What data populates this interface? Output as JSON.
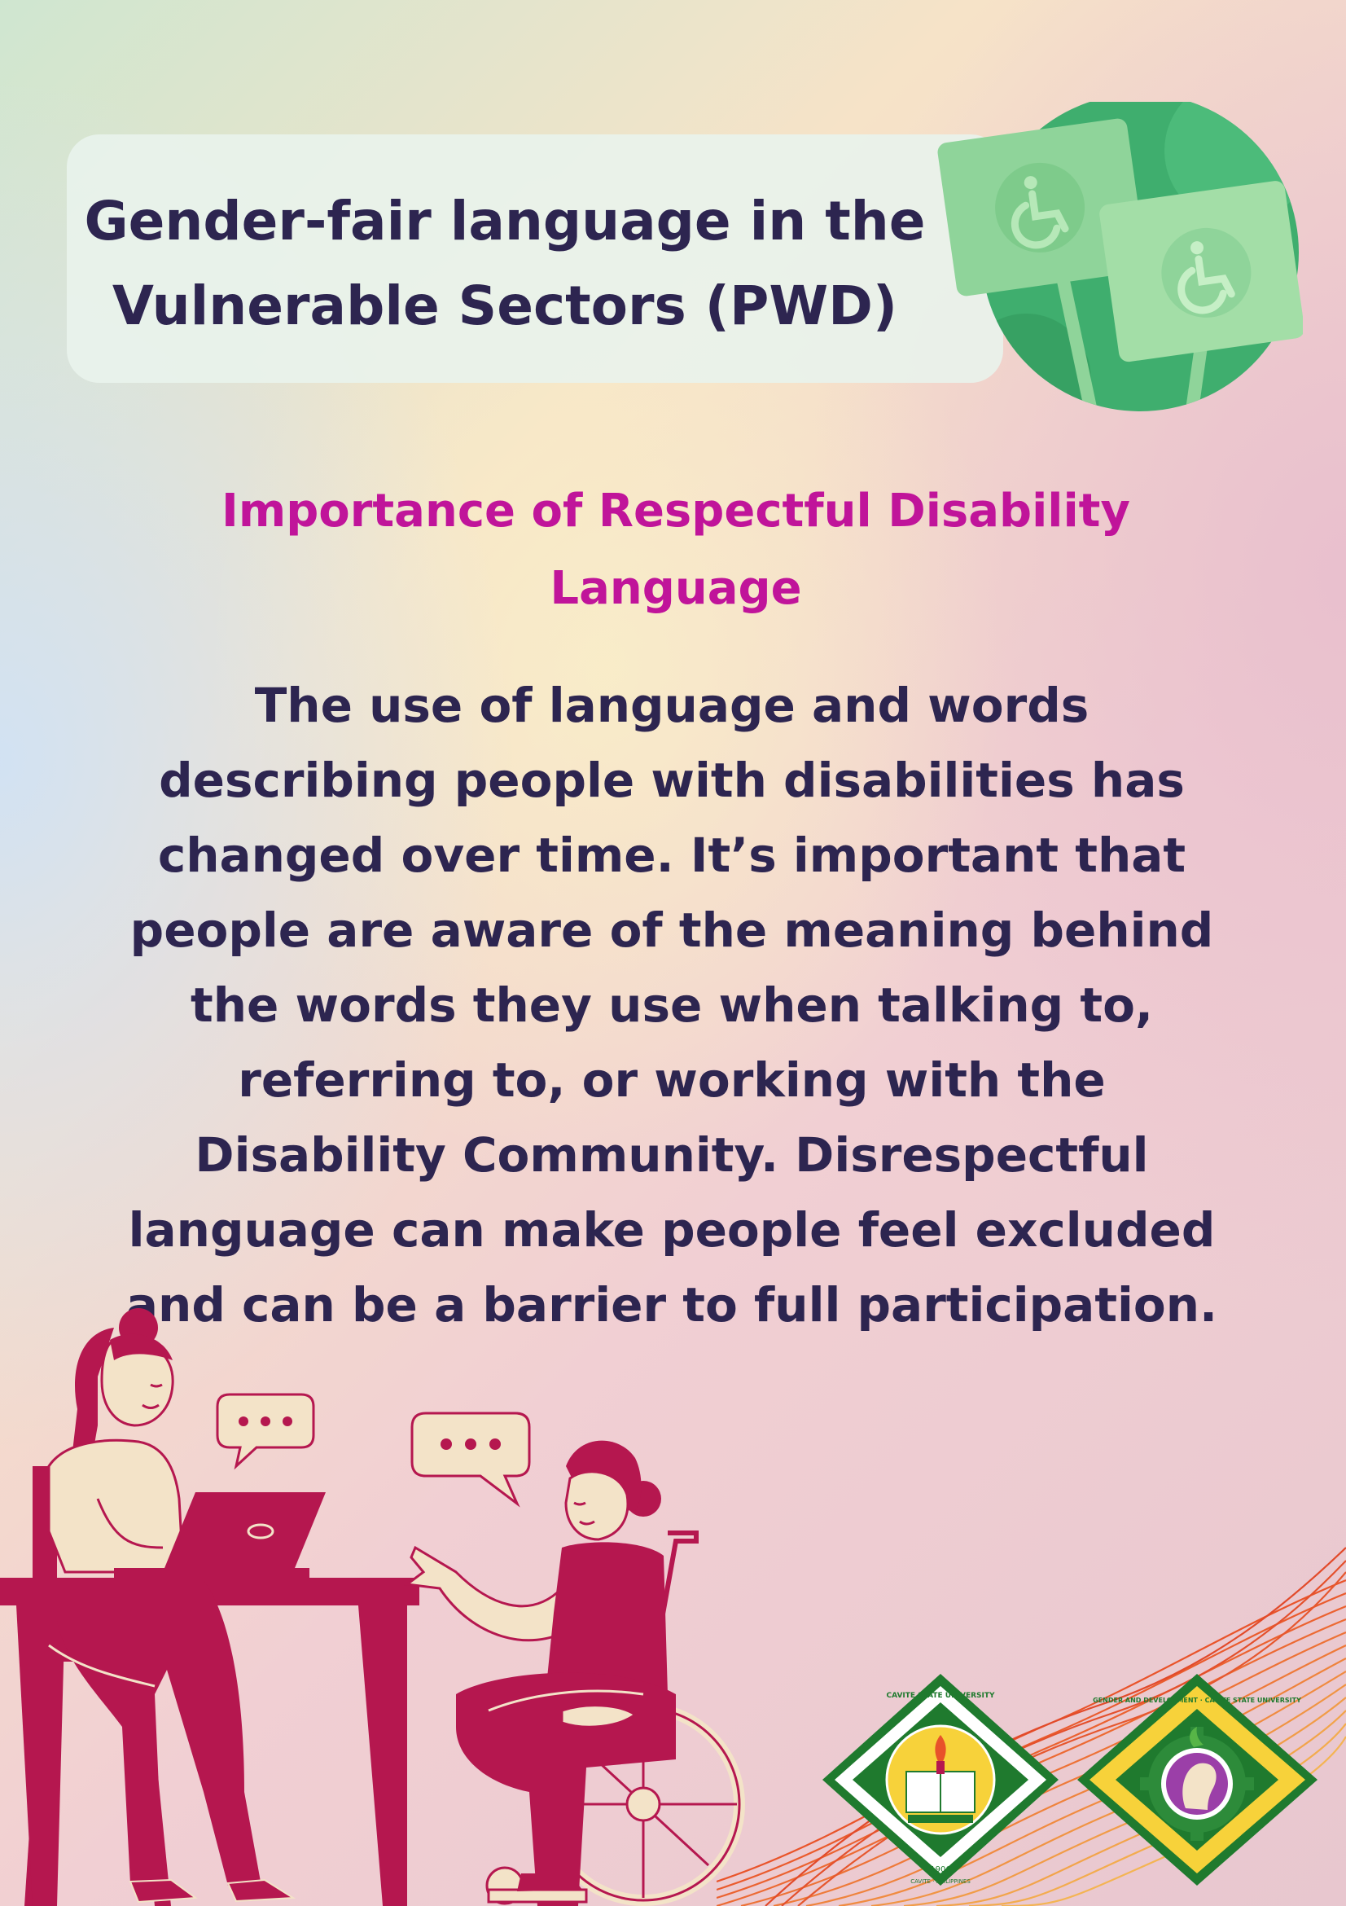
{
  "header": {
    "title_lines": [
      "Gender-fair language in the",
      "Vulnerable Sectors (PWD)"
    ]
  },
  "section": {
    "subtitle_lines": [
      "Importance of Respectful Disability",
      "Language"
    ],
    "body_lines": [
      "The use of language and words",
      "describing people with disabilities has",
      "changed over time. It’s important that",
      "people are aware of the meaning behind",
      "the words they use when talking to,",
      "referring to, or working with the",
      "Disability Community. Disrespectful",
      "language can make people feel excluded",
      "and can be a barrier to full participation."
    ]
  },
  "logos": {
    "csu": {
      "ring_text_top": "CAVITE STATE UNIVERSITY",
      "ring_text_bottom": "CAVITE · PHILIPPINES",
      "year": "1906"
    },
    "gad": {
      "ring_text": "GENDER AND DEVELOPMENT · CAVITE STATE UNIVERSITY"
    }
  },
  "colors": {
    "title": "#2d2550",
    "subtitle": "#c0149a",
    "illustration": "#b5174f",
    "skin": "#f3e3c8",
    "badge_green": "#3fae6e"
  },
  "icons": [
    "wheelchair-icon",
    "speech-bubble-icon"
  ]
}
